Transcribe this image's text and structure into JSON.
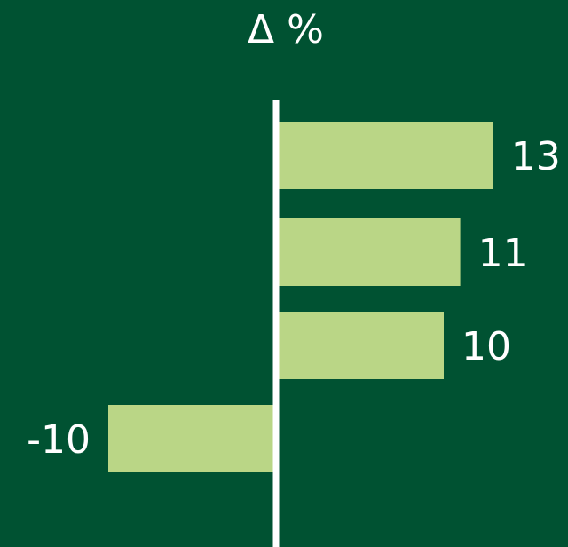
{
  "chart_data": {
    "type": "bar",
    "orientation": "horizontal",
    "title": "Δ %",
    "categories": [
      "",
      "",
      "",
      ""
    ],
    "values": [
      13,
      11,
      10,
      -10
    ],
    "data_labels": [
      "13",
      "11",
      "10",
      "-10"
    ],
    "xlim": [
      -10.3,
      13.3
    ],
    "grid": false,
    "legend": "none",
    "colors": {
      "background": "#005232",
      "bar": "#bad686",
      "axis": "#ffffff",
      "text": "#ffffff"
    }
  }
}
